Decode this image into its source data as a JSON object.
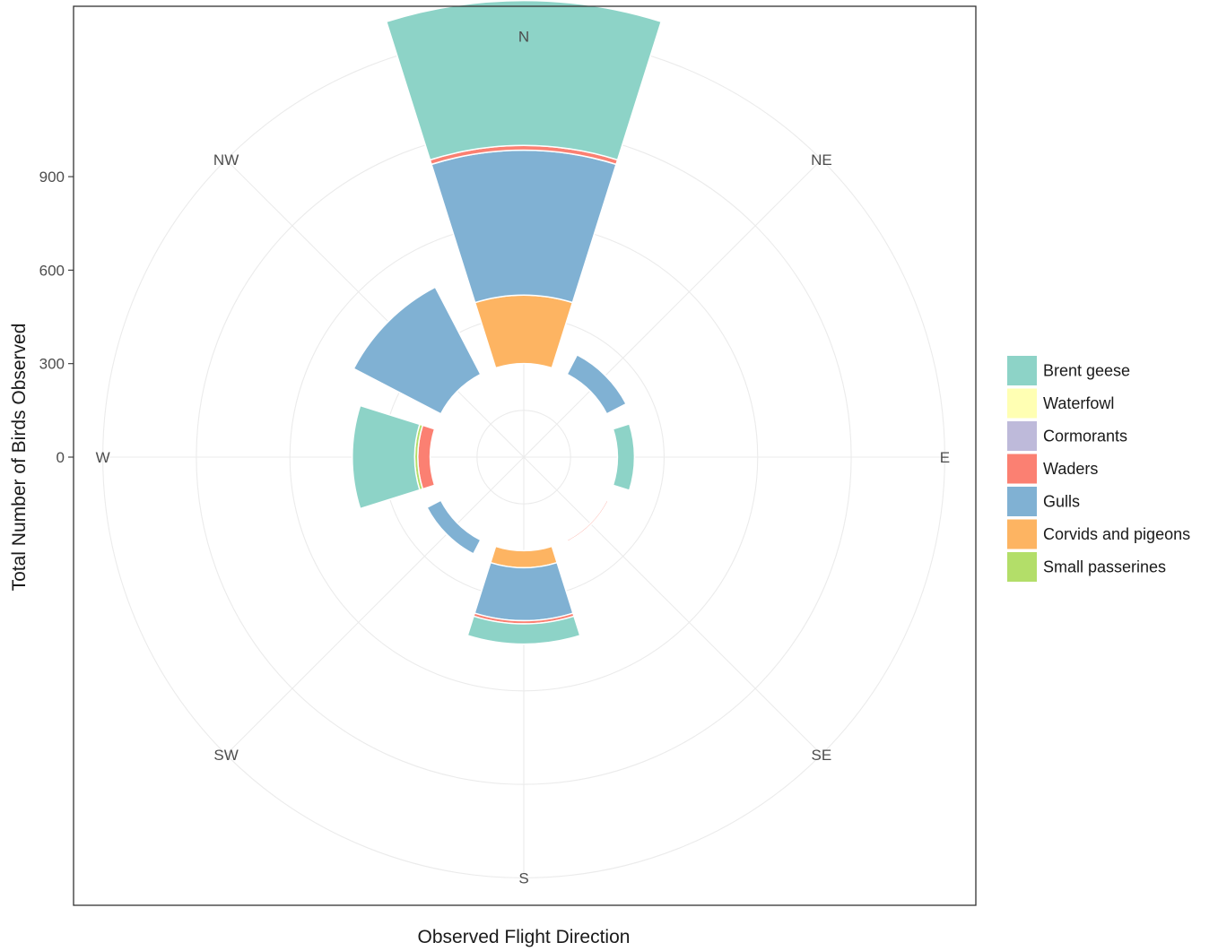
{
  "chart_data": {
    "type": "rose",
    "coord": "polar",
    "title": "",
    "xlabel": "Observed Flight Direction",
    "ylabel": "Total Number of Birds Observed",
    "y_ticks": [
      0,
      300,
      600,
      900
    ],
    "ylim": [
      -300,
      1000
    ],
    "bar_width_degrees": 35,
    "directions": [
      "N",
      "NE",
      "E",
      "SE",
      "S",
      "SW",
      "W",
      "NW"
    ],
    "direction_angles": [
      0,
      45,
      90,
      135,
      180,
      225,
      270,
      315
    ],
    "grid_rings": [
      -150,
      150,
      450,
      750,
      1050
    ],
    "spokes": [
      0,
      45,
      90,
      135,
      180,
      225,
      270,
      315
    ],
    "bars": [
      {
        "angle": 0,
        "label": "N",
        "stack": [
          {
            "group": "Corvids and pigeons",
            "value": 220
          },
          {
            "group": "Gulls",
            "value": 465
          },
          {
            "group": "Waders",
            "value": 15
          },
          {
            "group": "Brent geese",
            "value": 465
          }
        ]
      },
      {
        "angle": 45,
        "label": "NE",
        "stack": [
          {
            "group": "Gulls",
            "value": 70
          }
        ]
      },
      {
        "angle": 90,
        "label": "E",
        "stack": [
          {
            "group": "Brent geese",
            "value": 55
          }
        ]
      },
      {
        "angle": 135,
        "label": "SE",
        "stack": [
          {
            "group": "Waders",
            "value": 5
          }
        ]
      },
      {
        "angle": 180,
        "label": "S",
        "stack": [
          {
            "group": "Corvids and pigeons",
            "value": 55
          },
          {
            "group": "Gulls",
            "value": 170
          },
          {
            "group": "Waders",
            "value": 10
          },
          {
            "group": "Brent geese",
            "value": 65
          }
        ]
      },
      {
        "angle": 225,
        "label": "SW",
        "stack": [
          {
            "group": "Gulls",
            "value": 50
          }
        ]
      },
      {
        "angle": 270,
        "label": "W",
        "stack": [
          {
            "group": "Waders",
            "value": 40
          },
          {
            "group": "Small passerines",
            "value": 10
          },
          {
            "group": "Brent geese",
            "value": 200
          }
        ]
      },
      {
        "angle": 315,
        "label": "NW",
        "stack": [
          {
            "group": "Gulls",
            "value": 315
          }
        ]
      }
    ],
    "legend": {
      "position": "right",
      "items": [
        {
          "label": "Brent geese",
          "color": "#8dd3c7"
        },
        {
          "label": "Waterfowl",
          "color": "#ffffb3"
        },
        {
          "label": "Cormorants",
          "color": "#bebada"
        },
        {
          "label": "Waders",
          "color": "#fb8072"
        },
        {
          "label": "Gulls",
          "color": "#80b1d3"
        },
        {
          "label": "Corvids and pigeons",
          "color": "#fdb462"
        },
        {
          "label": "Small passerines",
          "color": "#b3de69"
        }
      ]
    },
    "grid": true,
    "panel_border": true
  }
}
